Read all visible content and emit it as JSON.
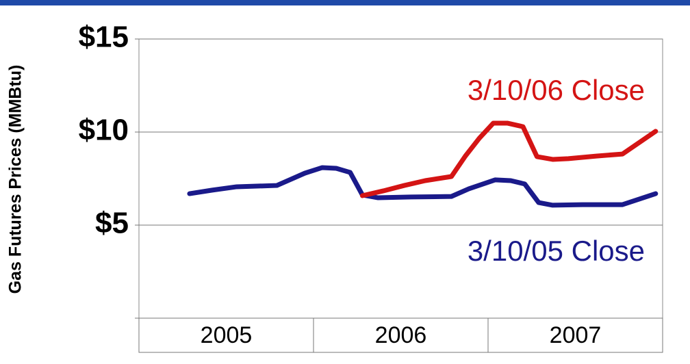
{
  "chart_data": {
    "type": "line",
    "y_label": "Gas Futures Prices (MMBtu)",
    "categories": [
      "2005",
      "2006",
      "2007"
    ],
    "xlim": [
      2005,
      2008
    ],
    "ylim": [
      0,
      15
    ],
    "yticks": [
      {
        "value": 5,
        "label": "$5"
      },
      {
        "value": 10,
        "label": "$10"
      },
      {
        "value": 15,
        "label": "$15"
      }
    ],
    "grid": true,
    "series": [
      {
        "name": "3/10/05 Close",
        "color": "#1a1a8a",
        "x": [
          2005.29,
          2005.42,
          2005.56,
          2005.69,
          2005.79,
          2005.95,
          2006.05,
          2006.13,
          2006.21,
          2006.28,
          2006.37,
          2006.56,
          2006.79,
          2006.89,
          2007.04,
          2007.13,
          2007.21,
          2007.29,
          2007.37,
          2007.54,
          2007.77,
          2007.96
        ],
        "values": [
          6.69,
          6.88,
          7.06,
          7.1,
          7.13,
          7.79,
          8.09,
          8.05,
          7.83,
          6.62,
          6.47,
          6.51,
          6.54,
          6.95,
          7.43,
          7.39,
          7.21,
          6.21,
          6.07,
          6.1,
          6.1,
          6.69
        ]
      },
      {
        "name": "3/10/06 Close",
        "color": "#d41414",
        "x": [
          2006.28,
          2006.4,
          2006.52,
          2006.64,
          2006.79,
          2006.87,
          2006.95,
          2007.03,
          2007.11,
          2007.2,
          2007.28,
          2007.37,
          2007.46,
          2007.62,
          2007.77,
          2007.96
        ],
        "values": [
          6.58,
          6.84,
          7.13,
          7.39,
          7.61,
          8.71,
          9.67,
          10.48,
          10.48,
          10.29,
          8.68,
          8.53,
          8.57,
          8.71,
          8.82,
          10.04
        ]
      }
    ]
  }
}
